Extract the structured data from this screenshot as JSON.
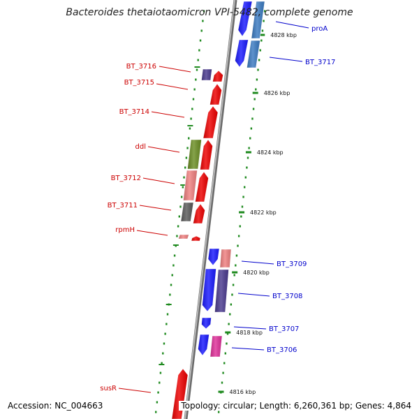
{
  "header": {
    "title": "Bacteroides thetaiotaomicron VPI-5482, complete genome"
  },
  "footer": {
    "accession": "Accession: NC_004663",
    "summary": "Topology: circular; Length: 6,260,361 bp; Genes: 4,864"
  },
  "colors": {
    "backbone": "#8f8f8f",
    "tick": "#1e8a1e",
    "forward_label": "#0000cc",
    "reverse_label": "#cc0000"
  },
  "scale_ticks": [
    {
      "label": "4828 kbp"
    },
    {
      "label": "4826 kbp"
    },
    {
      "label": "4824 kbp"
    },
    {
      "label": "4822 kbp"
    },
    {
      "label": "4820 kbp"
    },
    {
      "label": "4818 kbp"
    },
    {
      "label": "4816 kbp"
    }
  ],
  "gene_labels": [
    {
      "name": "proA",
      "strand": "forward"
    },
    {
      "name": "BT_3717",
      "strand": "forward"
    },
    {
      "name": "BT_3716",
      "strand": "reverse"
    },
    {
      "name": "BT_3715",
      "strand": "reverse"
    },
    {
      "name": "BT_3714",
      "strand": "reverse"
    },
    {
      "name": "ddl",
      "strand": "reverse"
    },
    {
      "name": "BT_3712",
      "strand": "reverse"
    },
    {
      "name": "BT_3711",
      "strand": "reverse"
    },
    {
      "name": "rpmH",
      "strand": "reverse"
    },
    {
      "name": "BT_3709",
      "strand": "forward"
    },
    {
      "name": "BT_3708",
      "strand": "forward"
    },
    {
      "name": "BT_3707",
      "strand": "forward"
    },
    {
      "name": "BT_3706",
      "strand": "forward"
    },
    {
      "name": "susR",
      "strand": "reverse"
    }
  ]
}
